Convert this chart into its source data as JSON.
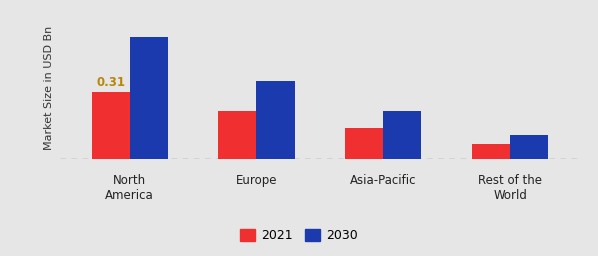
{
  "categories": [
    "North\nAmerica",
    "Europe",
    "Asia-Pacific",
    "Rest of the\nWorld"
  ],
  "values_2021": [
    0.31,
    0.22,
    0.14,
    0.07
  ],
  "values_2030": [
    0.56,
    0.36,
    0.22,
    0.11
  ],
  "bar_color_2021": "#f03030",
  "bar_color_2030": "#1a3aad",
  "ylabel": "Market Size in USD Bn",
  "annotation_text": "0.31",
  "legend_labels": [
    "2021",
    "2030"
  ],
  "bar_width": 0.3,
  "ylim": [
    0,
    0.65
  ],
  "background_color": "#e6e6e6",
  "label_fontsize": 8.5,
  "annot_fontsize": 8.5,
  "ylabel_fontsize": 8,
  "legend_fontsize": 9
}
